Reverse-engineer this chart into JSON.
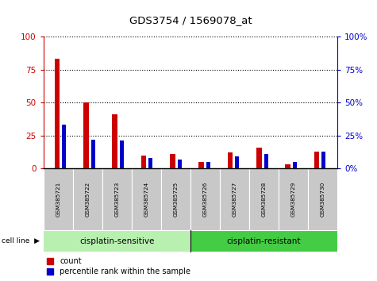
{
  "title": "GDS3754 / 1569078_at",
  "samples": [
    "GSM385721",
    "GSM385722",
    "GSM385723",
    "GSM385724",
    "GSM385725",
    "GSM385726",
    "GSM385727",
    "GSM385728",
    "GSM385729",
    "GSM385730"
  ],
  "count_values": [
    83,
    50,
    41,
    10,
    11,
    5,
    12,
    16,
    3,
    13
  ],
  "percentile_values": [
    33,
    22,
    21,
    8,
    7,
    5,
    9,
    11,
    5,
    13
  ],
  "groups": [
    {
      "label": "cisplatin-sensitive",
      "start": 0,
      "end": 5,
      "color": "#b8f0b0"
    },
    {
      "label": "cisplatin-resistant",
      "start": 5,
      "end": 10,
      "color": "#44cc44"
    }
  ],
  "bar_color_red": "#cc0000",
  "bar_color_blue": "#0000cc",
  "ylim": [
    0,
    100
  ],
  "yticks": [
    0,
    25,
    50,
    75,
    100
  ],
  "grid_color": "black",
  "sample_bg_color": "#c8c8c8",
  "plot_bg": "white",
  "legend_labels": [
    "count",
    "percentile rank within the sample"
  ],
  "cell_line_label": "cell line",
  "figure_width": 4.75,
  "figure_height": 3.54
}
